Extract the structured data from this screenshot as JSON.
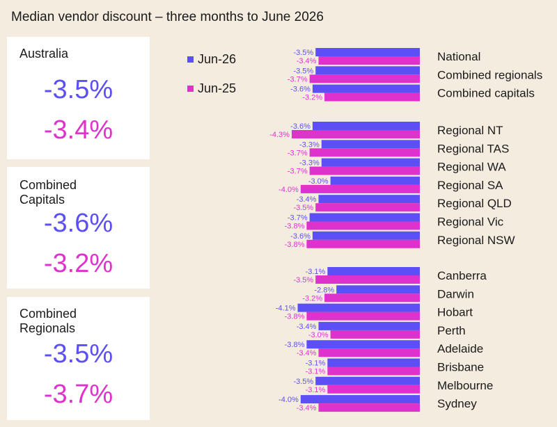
{
  "title": "Median vendor discount – three months to June 2026",
  "colors": {
    "jun26": "#5b4ff5",
    "jun25": "#dd33cc",
    "background": "#f5ece0",
    "card": "#ffffff"
  },
  "cards": [
    {
      "label": "Australia",
      "jun26": "-3.5%",
      "jun25": "-3.4%"
    },
    {
      "label": "Combined\nCapitals",
      "jun26": "-3.6%",
      "jun25": "-3.2%"
    },
    {
      "label": "Combined\nRegionals",
      "jun26": "-3.5%",
      "jun25": "-3.7%"
    }
  ],
  "legend": [
    {
      "name": "Jun-26",
      "color": "#5b4ff5"
    },
    {
      "name": "Jun-25",
      "color": "#dd33cc"
    }
  ],
  "chart_data": {
    "type": "bar",
    "orientation": "horizontal",
    "title": "Median vendor discount – three months to June 2026",
    "groups": [
      [
        "National",
        "Combined regionals",
        "Combined capitals"
      ],
      [
        "Regional NT",
        "Regional TAS",
        "Regional WA",
        "Regional SA",
        "Regional QLD",
        "Regional Vic",
        "Regional NSW"
      ],
      [
        "Canberra",
        "Darwin",
        "Hobart",
        "Perth",
        "Adelaide",
        "Brisbane",
        "Melbourne",
        "Sydney"
      ]
    ],
    "categories": [
      "National",
      "Combined regionals",
      "Combined capitals",
      "Regional NT",
      "Regional TAS",
      "Regional WA",
      "Regional SA",
      "Regional QLD",
      "Regional Vic",
      "Regional NSW",
      "Canberra",
      "Darwin",
      "Hobart",
      "Perth",
      "Adelaide",
      "Brisbane",
      "Melbourne",
      "Sydney"
    ],
    "series": [
      {
        "name": "Jun-26",
        "values": [
          -3.5,
          -3.5,
          -3.6,
          -3.6,
          -3.3,
          -3.3,
          -3.0,
          -3.4,
          -3.7,
          -3.6,
          -3.1,
          -2.8,
          -4.1,
          -3.4,
          -3.8,
          -3.1,
          -3.5,
          -4.0
        ]
      },
      {
        "name": "Jun-25",
        "values": [
          -3.4,
          -3.7,
          -3.2,
          -4.3,
          -3.7,
          -3.7,
          -4.0,
          -3.5,
          -3.8,
          -3.8,
          -3.5,
          -3.2,
          -3.8,
          -3.0,
          -3.4,
          -3.1,
          -3.1,
          -3.4
        ]
      }
    ],
    "value_format": "%",
    "legend_position": "top-left",
    "grid": false
  }
}
